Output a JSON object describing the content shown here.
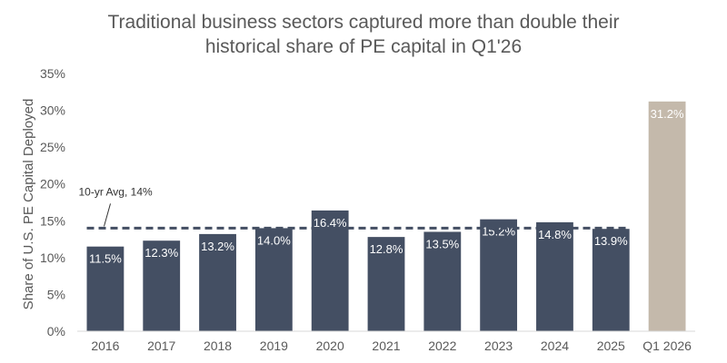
{
  "chart_data": {
    "type": "bar",
    "title_line1": "Traditional business sectors captured more than double their",
    "title_line2": "historical share of PE capital in Q1'26",
    "ylabel": "Share of U.S. PE Capital Deployed",
    "xlabel": "",
    "ylim": [
      0,
      35
    ],
    "yticks": [
      0,
      5,
      10,
      15,
      20,
      25,
      30,
      35
    ],
    "ytick_labels": [
      "0%",
      "5%",
      "10%",
      "15%",
      "20%",
      "25%",
      "30%",
      "35%"
    ],
    "categories": [
      "2016",
      "2017",
      "2018",
      "2019",
      "2020",
      "2021",
      "2022",
      "2023",
      "2024",
      "2025",
      "Q1 2026"
    ],
    "values": [
      11.5,
      12.3,
      13.2,
      14.0,
      16.4,
      12.8,
      13.5,
      15.2,
      14.8,
      13.9,
      31.2
    ],
    "value_labels": [
      "11.5%",
      "12.3%",
      "13.2%",
      "14.0%",
      "16.4%",
      "12.8%",
      "13.5%",
      "15.2%",
      "14.8%",
      "13.9%",
      "31.2%"
    ],
    "grid": false,
    "reference_line": {
      "label": "10-yr Avg, 14%",
      "value": 14,
      "style": "dashed"
    },
    "colors": {
      "bar": "#444f63",
      "highlight_bar": "#c4b9ab",
      "avg_line": "#444f63",
      "text": "#595959",
      "label_text": "#ffffff"
    }
  }
}
